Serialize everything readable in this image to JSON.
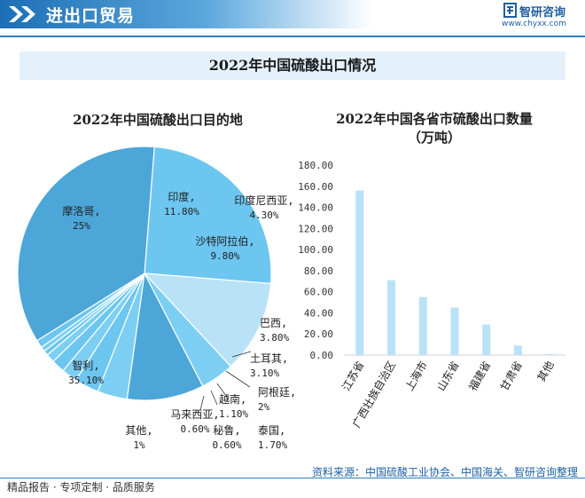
{
  "header": {
    "title": "进出口贸易",
    "logo_name": "智研咨询",
    "logo_url": "www.chyxx.com"
  },
  "main_title": "2022年中国硫酸出口情况",
  "footer": {
    "left": "精品报告 · 专项定制 · 品质服务",
    "source": "资料来源：中国硫酸工业协会、中国海关、智研咨询整理"
  },
  "colors": {
    "header_blue": "#1c6fb5",
    "pie_dark": "#4da6d8",
    "pie_mid": "#6cc6f0",
    "pie_light": "#b9e2f7",
    "bar": "#b9e2f7"
  },
  "chart_data": [
    {
      "type": "pie",
      "title": "2022年中国硫酸出口目的地",
      "slices": [
        {
          "label": "摩洛哥,",
          "value_label": "25%",
          "value": 25.0
        },
        {
          "label": "印度,",
          "value_label": "11.80%",
          "value": 11.8
        },
        {
          "label": "印度尼西亚,",
          "value_label": "4.30%",
          "value": 4.3
        },
        {
          "label": "沙特阿拉伯,",
          "value_label": "9.80%",
          "value": 9.8
        },
        {
          "label": "巴西,",
          "value_label": "3.80%",
          "value": 3.8
        },
        {
          "label": "土耳其,",
          "value_label": "3.10%",
          "value": 3.1
        },
        {
          "label": "阿根廷,",
          "value_label": "2%",
          "value": 2.0
        },
        {
          "label": "泰国,",
          "value_label": "1.70%",
          "value": 1.7
        },
        {
          "label": "越南,",
          "value_label": "1.10%",
          "value": 1.1
        },
        {
          "label": "秘鲁,",
          "value_label": "0.60%",
          "value": 0.6
        },
        {
          "label": "马来西亚,",
          "value_label": "0.60%",
          "value": 0.6
        },
        {
          "label": "其他,",
          "value_label": "1%",
          "value": 1.0
        },
        {
          "label": "智利,",
          "value_label": "35.10%",
          "value": 35.1
        }
      ]
    },
    {
      "type": "bar",
      "title": "2022年中国各省市硫酸出口数量",
      "subtitle": "（万吨）",
      "categories": [
        "江苏省",
        "广西壮族自治区",
        "上海市",
        "山东省",
        "福建省",
        "甘肃省",
        "其他"
      ],
      "values": [
        156,
        71,
        55,
        45,
        29,
        9,
        1
      ],
      "ylim": [
        0,
        180
      ],
      "yticks": [
        "0.00",
        "20.00",
        "40.00",
        "60.00",
        "80.00",
        "100.00",
        "120.00",
        "140.00",
        "160.00",
        "180.00"
      ]
    }
  ]
}
